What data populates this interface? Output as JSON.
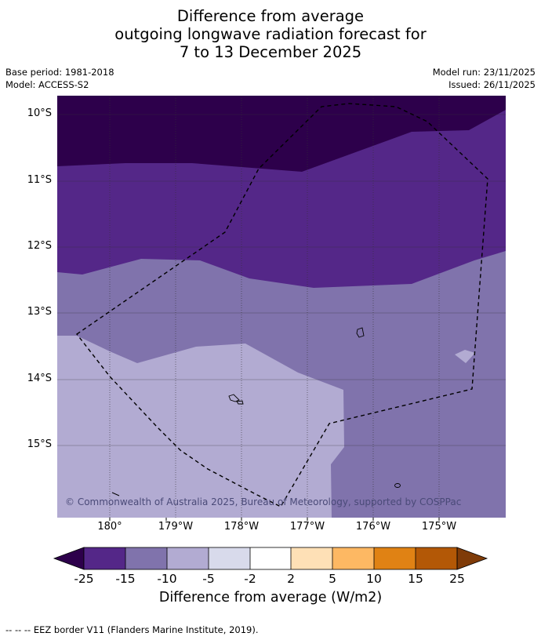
{
  "title": {
    "line1": "Difference from average",
    "line2": "outgoing longwave radiation forecast for",
    "line3": "7 to 13 December 2025"
  },
  "meta": {
    "base_period": "Base period: 1981-2018",
    "model": "Model: ACCESS-S2",
    "model_run": "Model run: 23/11/2025",
    "issued": "Issued: 26/11/2025"
  },
  "map": {
    "lat_labels": [
      "10°S",
      "11°S",
      "12°S",
      "13°S",
      "14°S",
      "15°S"
    ],
    "lon_labels": [
      "180°",
      "179°W",
      "178°W",
      "177°W",
      "176°W",
      "175°W"
    ],
    "copyright": "© Commonwealth of Australia 2025, Bureau of Meteorology, supported by COSPPac",
    "category_colors": {
      "lt_minus25": "#2d004b",
      "minus25_to_minus15": "#542788",
      "minus15_to_minus10": "#8073ac",
      "minus10_to_minus5": "#b2abd2"
    }
  },
  "colorbar": {
    "tick_labels": [
      "-25",
      "-15",
      "-10",
      "-5",
      "-2",
      "2",
      "5",
      "10",
      "15",
      "25"
    ],
    "colors": [
      "#2d004b",
      "#542788",
      "#8073ac",
      "#b2abd2",
      "#d8daeb",
      "#ffffff",
      "#fee0b6",
      "#fdb863",
      "#e08214",
      "#b35806",
      "#7f3b08"
    ],
    "label": "Difference from average (W/m2)"
  },
  "footer": {
    "text": "--  --  -- EEZ border V11 (Flanders Marine Institute, 2019)."
  }
}
